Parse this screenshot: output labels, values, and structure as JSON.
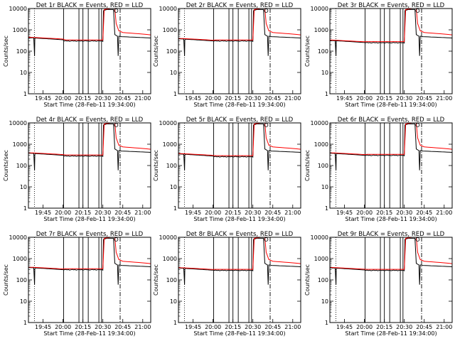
{
  "chart_data": {
    "type": "line",
    "layout": "3x3 grid of panels",
    "y_scale": "log",
    "ylim": [
      1,
      10000
    ],
    "y_tick_labels": [
      "1",
      "10",
      "100",
      "1000",
      "10000"
    ],
    "x_tick_labels": [
      "19:45",
      "20:00",
      "20:15",
      "20:30",
      "20:45",
      "21:00"
    ],
    "xlim_minutes_after_19_00": [
      34,
      126
    ],
    "ylabel": "Counts/sec",
    "xlabel": "Start Time (28-Feb-11 19:34:00)",
    "series_legend": "BLACK = Events, RED = LLD",
    "series_colors": {
      "events": "#000000",
      "lld": "#ff0000"
    },
    "panels": [
      {
        "title": "Det 1r BLACK = Events, RED = LLD",
        "base_rate": 300,
        "pre_rate": 430
      },
      {
        "title": "Det 2r BLACK = Events, RED = LLD",
        "base_rate": 300,
        "pre_rate": 380
      },
      {
        "title": "Det 3r BLACK = Events, RED = LLD",
        "base_rate": 250,
        "pre_rate": 320
      },
      {
        "title": "Det 4r BLACK = Events, RED = LLD",
        "base_rate": 280,
        "pre_rate": 380
      },
      {
        "title": "Det 5r BLACK = Events, RED = LLD",
        "base_rate": 260,
        "pre_rate": 350
      },
      {
        "title": "Det 6r BLACK = Events, RED = LLD",
        "base_rate": 300,
        "pre_rate": 380
      },
      {
        "title": "Det 7r BLACK = Events, RED = LLD",
        "base_rate": 300,
        "pre_rate": 380
      },
      {
        "title": "Det 8r BLACK = Events, RED = LLD",
        "base_rate": 280,
        "pre_rate": 360
      },
      {
        "title": "Det 9r BLACK = Events, RED = LLD",
        "base_rate": 280,
        "pre_rate": 370
      }
    ]
  }
}
